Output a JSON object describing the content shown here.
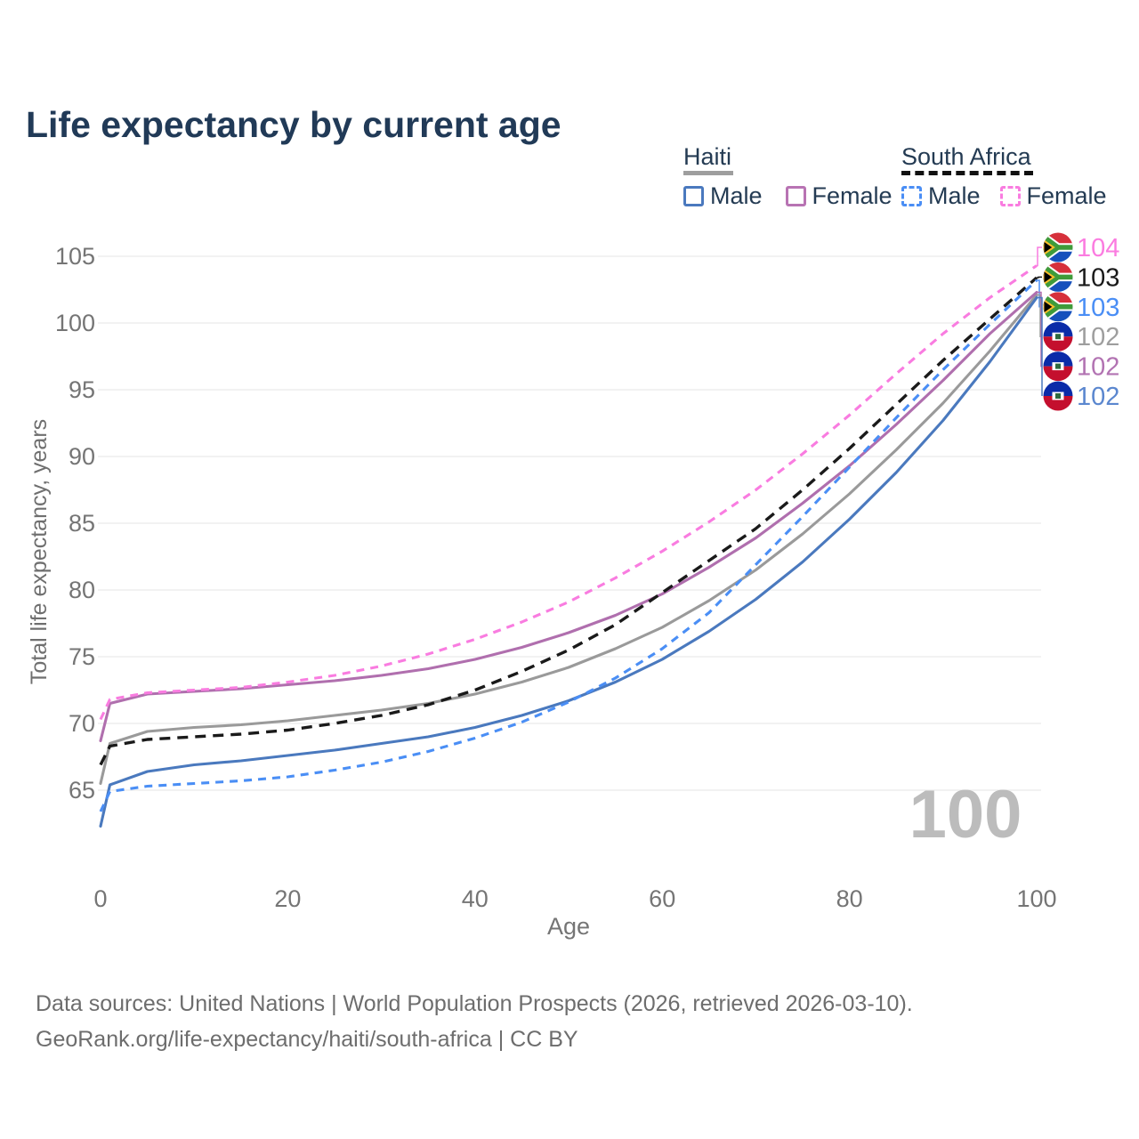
{
  "title": "Life expectancy by current age",
  "legend": {
    "groups": [
      {
        "label": "Haiti",
        "line_style": "solid",
        "underline_color": "#9e9e9e",
        "items": [
          {
            "label": "Male",
            "color": "#4a79be"
          },
          {
            "label": "Female",
            "color": "#b873b3"
          }
        ]
      },
      {
        "label": "South Africa",
        "line_style": "dashed",
        "underline_color": "#111111",
        "items": [
          {
            "label": "Male",
            "color": "#4a8ef5"
          },
          {
            "label": "Female",
            "color": "#f97ce0"
          }
        ]
      }
    ]
  },
  "chart_data": {
    "type": "line",
    "title": "Life expectancy by current age",
    "xlabel": "Age",
    "ylabel": "Total life expectancy, years",
    "xlim": [
      0,
      100
    ],
    "ylim": [
      62,
      105.5
    ],
    "x_ticks": [
      0,
      20,
      40,
      60,
      80,
      100
    ],
    "y_ticks": [
      65,
      70,
      75,
      80,
      85,
      90,
      95,
      100,
      105
    ],
    "grid": "horizontal",
    "watermark": "100",
    "legend_position": "top-right",
    "x": [
      0,
      1,
      5,
      10,
      15,
      20,
      25,
      30,
      35,
      40,
      45,
      50,
      55,
      60,
      65,
      70,
      75,
      80,
      85,
      90,
      95,
      100
    ],
    "series": [
      {
        "name": "Haiti Total",
        "country": "Haiti",
        "sex": "total",
        "color": "#9a9a9a",
        "dashed": false,
        "flag": "ht",
        "end_label": "102",
        "label_row": 3,
        "label_color": "#9e9e9e",
        "values": [
          65.5,
          68.5,
          69.4,
          69.7,
          69.9,
          70.2,
          70.6,
          71.0,
          71.5,
          72.2,
          73.1,
          74.2,
          75.6,
          77.2,
          79.2,
          81.5,
          84.2,
          87.2,
          90.5,
          94.0,
          97.9,
          102.1
        ]
      },
      {
        "name": "Haiti Female",
        "country": "Haiti",
        "sex": "female",
        "color": "#b06fae",
        "dashed": false,
        "flag": "ht",
        "end_label": "102",
        "label_row": 4,
        "label_color": "#b273b2",
        "values": [
          68.7,
          71.5,
          72.2,
          72.4,
          72.6,
          72.9,
          73.2,
          73.6,
          74.1,
          74.8,
          75.7,
          76.8,
          78.1,
          79.7,
          81.7,
          83.9,
          86.5,
          89.3,
          92.4,
          95.7,
          99.2,
          102.3
        ]
      },
      {
        "name": "Haiti Male",
        "country": "Haiti",
        "sex": "male",
        "color": "#4a79be",
        "dashed": false,
        "flag": "ht",
        "end_label": "102",
        "label_row": 5,
        "label_color": "#5b87cf",
        "values": [
          62.3,
          65.4,
          66.4,
          66.9,
          67.2,
          67.6,
          68.0,
          68.5,
          69.0,
          69.7,
          70.6,
          71.7,
          73.1,
          74.8,
          76.9,
          79.3,
          82.1,
          85.3,
          88.8,
          92.7,
          97.1,
          101.9
        ]
      },
      {
        "name": "South Africa Total",
        "country": "South Africa",
        "sex": "total",
        "color": "#1a1a1a",
        "dashed": true,
        "flag": "za",
        "end_label": "103",
        "label_row": 1,
        "label_color": "#1a1a1a",
        "values": [
          66.9,
          68.3,
          68.8,
          69.0,
          69.2,
          69.5,
          70.0,
          70.6,
          71.4,
          72.5,
          73.9,
          75.5,
          77.4,
          79.8,
          82.2,
          84.6,
          87.5,
          90.6,
          93.9,
          97.2,
          100.3,
          103.4
        ]
      },
      {
        "name": "South Africa Male",
        "country": "South Africa",
        "sex": "male",
        "color": "#4a8ef5",
        "dashed": true,
        "flag": "za",
        "end_label": "103",
        "label_row": 2,
        "label_color": "#4a8ef5",
        "values": [
          63.4,
          64.9,
          65.3,
          65.5,
          65.7,
          66.0,
          66.5,
          67.1,
          67.9,
          68.9,
          70.1,
          71.6,
          73.4,
          75.6,
          78.3,
          81.9,
          85.5,
          89.2,
          92.9,
          96.5,
          99.9,
          103.2
        ]
      },
      {
        "name": "South Africa Female",
        "country": "South Africa",
        "sex": "female",
        "color": "#f97ce0",
        "dashed": true,
        "flag": "za",
        "end_label": "104",
        "label_row": 0,
        "label_color": "#fb7ce0",
        "values": [
          70.3,
          71.8,
          72.3,
          72.5,
          72.7,
          73.1,
          73.6,
          74.3,
          75.2,
          76.3,
          77.6,
          79.1,
          80.9,
          82.9,
          85.1,
          87.5,
          90.2,
          93.1,
          96.2,
          99.2,
          101.9,
          104.3
        ]
      }
    ]
  },
  "axis": {
    "tick_color": "#757575",
    "grid_color": "#ebebeb",
    "watermark_color": "#bcbcbc"
  },
  "footer": {
    "line1": "Data sources: United Nations | World Population Prospects (2026, retrieved 2026-03-10).",
    "line2": "GeoRank.org/life-expectancy/haiti/south-africa | CC BY"
  }
}
